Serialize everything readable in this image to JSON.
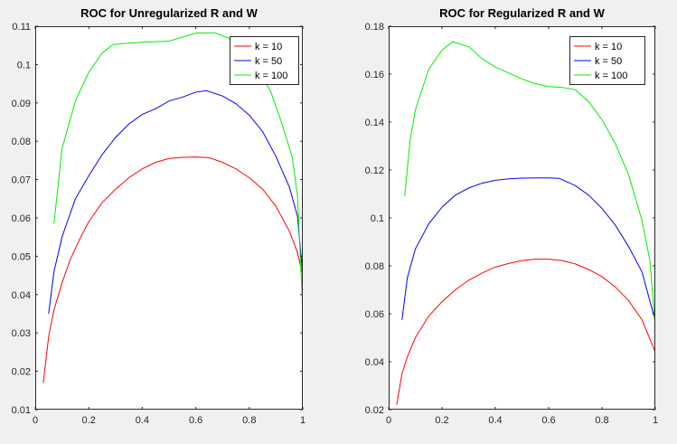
{
  "chart_data": [
    {
      "type": "line",
      "title": "ROC for Unregularized R and W",
      "xlabel": "",
      "ylabel": "",
      "xlim": [
        0,
        1
      ],
      "ylim": [
        0.01,
        0.11
      ],
      "xticks": [
        0,
        0.2,
        0.4,
        0.6,
        0.8,
        1
      ],
      "xtick_labels": [
        "0",
        "0.2",
        "0.4",
        "0.6",
        "0.8",
        "1"
      ],
      "yticks": [
        0.01,
        0.02,
        0.03,
        0.04,
        0.05,
        0.06,
        0.07,
        0.08,
        0.09,
        0.1,
        0.11
      ],
      "ytick_labels": [
        "0.01",
        "0.02",
        "0.03",
        "0.04",
        "0.05",
        "0.06",
        "0.07",
        "0.08",
        "0.09",
        "0.1",
        "0.11"
      ],
      "grid": false,
      "legend_position": "top-right",
      "series": [
        {
          "name": "k = 10",
          "color": "#ff0000",
          "points": [
            [
              0.03,
              0.017
            ],
            [
              0.05,
              0.029
            ],
            [
              0.07,
              0.036
            ],
            [
              0.1,
              0.043
            ],
            [
              0.13,
              0.049
            ],
            [
              0.17,
              0.055
            ],
            [
              0.2,
              0.059
            ],
            [
              0.25,
              0.064
            ],
            [
              0.3,
              0.0675
            ],
            [
              0.35,
              0.0705
            ],
            [
              0.4,
              0.0728
            ],
            [
              0.45,
              0.0745
            ],
            [
              0.5,
              0.0755
            ],
            [
              0.55,
              0.0758
            ],
            [
              0.6,
              0.0759
            ],
            [
              0.65,
              0.0757
            ],
            [
              0.7,
              0.0745
            ],
            [
              0.75,
              0.0728
            ],
            [
              0.8,
              0.0705
            ],
            [
              0.85,
              0.0675
            ],
            [
              0.9,
              0.063
            ],
            [
              0.95,
              0.0565
            ],
            [
              0.98,
              0.051
            ],
            [
              1.0,
              0.045
            ]
          ]
        },
        {
          "name": "k = 50",
          "color": "#0000ff",
          "points": [
            [
              0.05,
              0.035
            ],
            [
              0.07,
              0.046
            ],
            [
              0.1,
              0.055
            ],
            [
              0.15,
              0.065
            ],
            [
              0.2,
              0.071
            ],
            [
              0.25,
              0.0765
            ],
            [
              0.3,
              0.081
            ],
            [
              0.35,
              0.0845
            ],
            [
              0.4,
              0.087
            ],
            [
              0.45,
              0.0885
            ],
            [
              0.5,
              0.0905
            ],
            [
              0.55,
              0.0915
            ],
            [
              0.6,
              0.0928
            ],
            [
              0.64,
              0.0932
            ],
            [
              0.7,
              0.0918
            ],
            [
              0.75,
              0.0898
            ],
            [
              0.8,
              0.0868
            ],
            [
              0.85,
              0.0825
            ],
            [
              0.9,
              0.076
            ],
            [
              0.95,
              0.068
            ],
            [
              0.98,
              0.0605
            ],
            [
              1.0,
              0.045
            ]
          ]
        },
        {
          "name": "k = 100",
          "color": "#00ee00",
          "points": [
            [
              0.07,
              0.0585
            ],
            [
              0.1,
              0.078
            ],
            [
              0.15,
              0.0905
            ],
            [
              0.2,
              0.098
            ],
            [
              0.25,
              0.103
            ],
            [
              0.29,
              0.1052
            ],
            [
              0.35,
              0.1056
            ],
            [
              0.4,
              0.1058
            ],
            [
              0.5,
              0.1061
            ],
            [
              0.6,
              0.1082
            ],
            [
              0.67,
              0.1083
            ],
            [
              0.72,
              0.107
            ],
            [
              0.78,
              0.104
            ],
            [
              0.83,
              0.099
            ],
            [
              0.88,
              0.093
            ],
            [
              0.92,
              0.085
            ],
            [
              0.96,
              0.076
            ],
            [
              0.98,
              0.066
            ],
            [
              1.0,
              0.036
            ]
          ]
        }
      ]
    },
    {
      "type": "line",
      "title": "ROC for Regularized R and W",
      "xlabel": "",
      "ylabel": "",
      "xlim": [
        0,
        1
      ],
      "ylim": [
        0.02,
        0.18
      ],
      "xticks": [
        0,
        0.2,
        0.4,
        0.6,
        0.8,
        1
      ],
      "xtick_labels": [
        "0",
        "0.2",
        "0.4",
        "0.6",
        "0.8",
        "1"
      ],
      "yticks": [
        0.02,
        0.04,
        0.06,
        0.08,
        0.1,
        0.12,
        0.14,
        0.16,
        0.18
      ],
      "ytick_labels": [
        "0.02",
        "0.04",
        "0.06",
        "0.08",
        "0.1",
        "0.12",
        "0.14",
        "0.16",
        "0.18"
      ],
      "grid": false,
      "legend_position": "top-right",
      "series": [
        {
          "name": "k = 10",
          "color": "#ff0000",
          "points": [
            [
              0.03,
              0.022
            ],
            [
              0.05,
              0.035
            ],
            [
              0.07,
              0.042
            ],
            [
              0.1,
              0.05
            ],
            [
              0.15,
              0.059
            ],
            [
              0.2,
              0.065
            ],
            [
              0.25,
              0.07
            ],
            [
              0.3,
              0.074
            ],
            [
              0.35,
              0.077
            ],
            [
              0.4,
              0.0795
            ],
            [
              0.45,
              0.081
            ],
            [
              0.5,
              0.0822
            ],
            [
              0.55,
              0.0828
            ],
            [
              0.6,
              0.0828
            ],
            [
              0.65,
              0.0822
            ],
            [
              0.7,
              0.0808
            ],
            [
              0.75,
              0.0785
            ],
            [
              0.8,
              0.0755
            ],
            [
              0.85,
              0.0712
            ],
            [
              0.9,
              0.0655
            ],
            [
              0.95,
              0.0575
            ],
            [
              1.0,
              0.044
            ]
          ]
        },
        {
          "name": "k = 50",
          "color": "#0000ff",
          "points": [
            [
              0.05,
              0.0575
            ],
            [
              0.07,
              0.075
            ],
            [
              0.1,
              0.087
            ],
            [
              0.15,
              0.0975
            ],
            [
              0.2,
              0.1045
            ],
            [
              0.25,
              0.1095
            ],
            [
              0.3,
              0.1125
            ],
            [
              0.35,
              0.1145
            ],
            [
              0.4,
              0.1157
            ],
            [
              0.45,
              0.1163
            ],
            [
              0.5,
              0.1166
            ],
            [
              0.55,
              0.1167
            ],
            [
              0.6,
              0.1167
            ],
            [
              0.64,
              0.1165
            ],
            [
              0.7,
              0.1135
            ],
            [
              0.75,
              0.1095
            ],
            [
              0.8,
              0.104
            ],
            [
              0.85,
              0.097
            ],
            [
              0.9,
              0.088
            ],
            [
              0.95,
              0.0775
            ],
            [
              1.0,
              0.057
            ]
          ]
        },
        {
          "name": "k = 100",
          "color": "#00ee00",
          "points": [
            [
              0.06,
              0.109
            ],
            [
              0.08,
              0.132
            ],
            [
              0.1,
              0.145
            ],
            [
              0.15,
              0.162
            ],
            [
              0.2,
              0.17
            ],
            [
              0.24,
              0.1735
            ],
            [
              0.3,
              0.1715
            ],
            [
              0.35,
              0.1665
            ],
            [
              0.4,
              0.163
            ],
            [
              0.45,
              0.1605
            ],
            [
              0.5,
              0.158
            ],
            [
              0.55,
              0.156
            ],
            [
              0.6,
              0.1548
            ],
            [
              0.65,
              0.1545
            ],
            [
              0.7,
              0.1535
            ],
            [
              0.75,
              0.1485
            ],
            [
              0.8,
              0.141
            ],
            [
              0.85,
              0.131
            ],
            [
              0.9,
              0.118
            ],
            [
              0.95,
              0.099
            ],
            [
              0.98,
              0.082
            ],
            [
              1.0,
              0.054
            ]
          ]
        }
      ]
    }
  ]
}
